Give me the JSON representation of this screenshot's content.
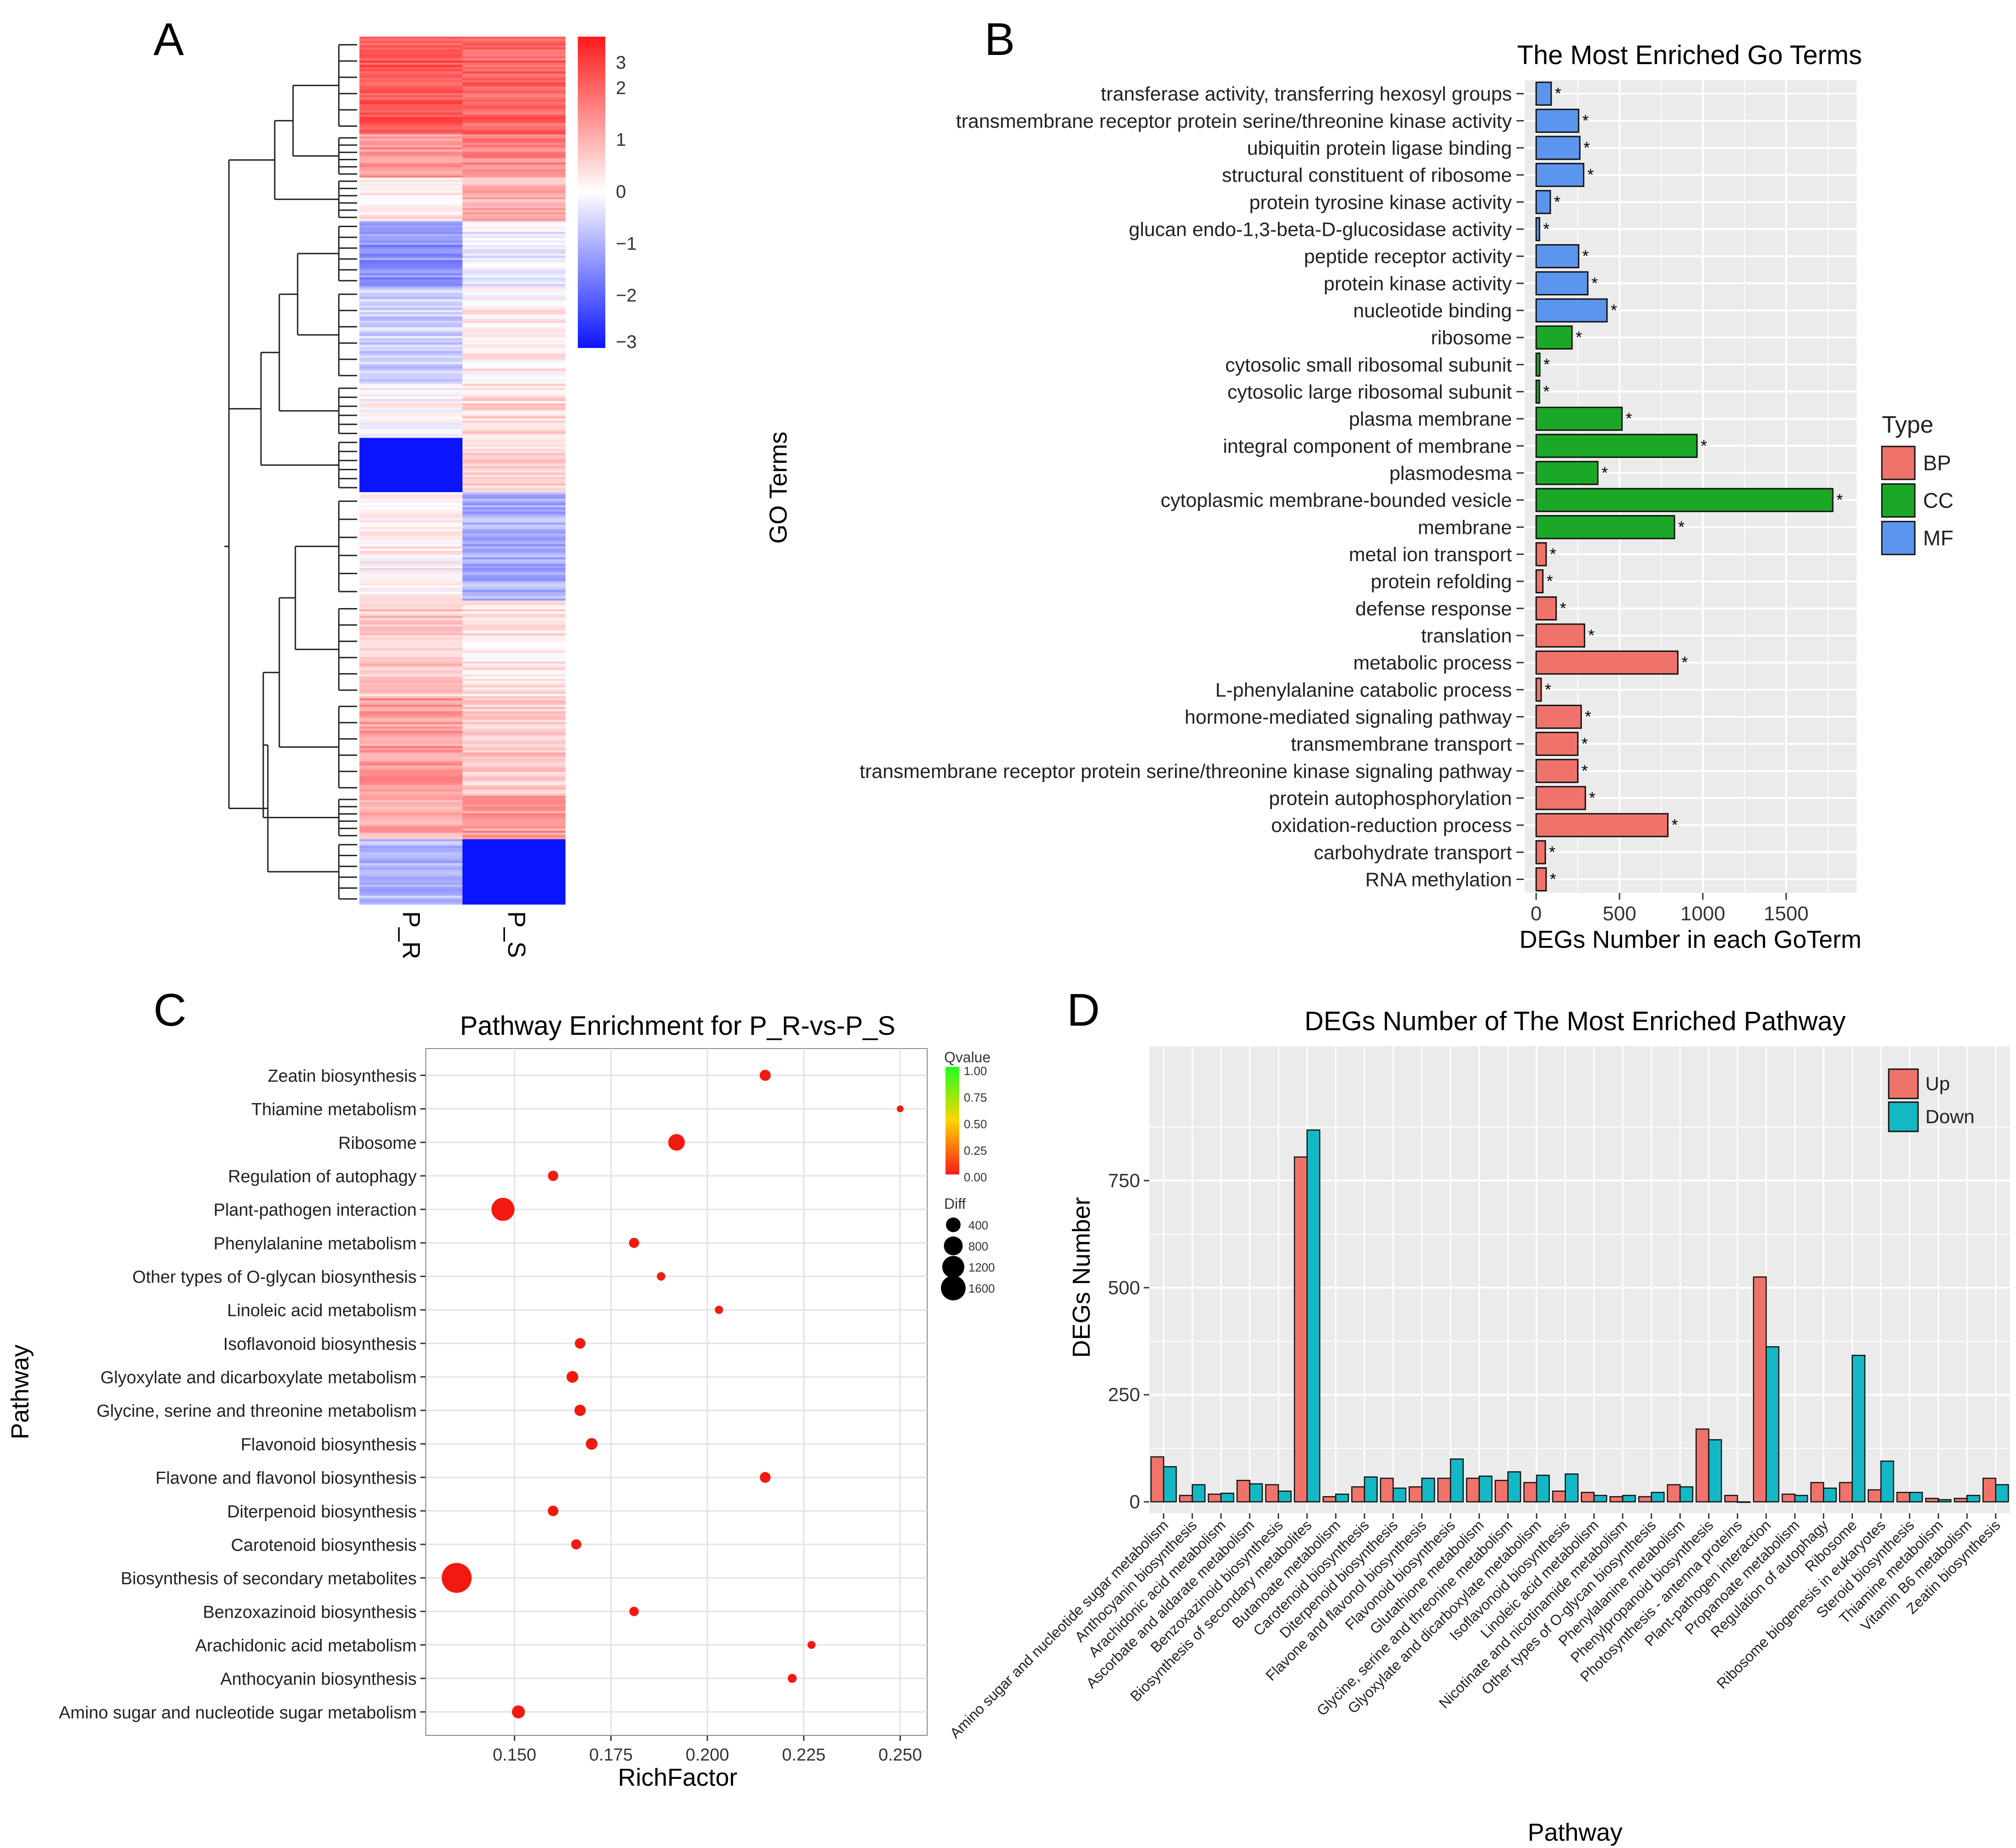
{
  "panels": {
    "A": {
      "letter": "A",
      "columns": [
        "P_R",
        "P_S"
      ],
      "colorbar": {
        "ticks": [
          3,
          2,
          1,
          0,
          -1,
          -2,
          -3
        ],
        "low_color": "#0a14ff",
        "mid_color": "#ffffff",
        "high_color": "#ff1a1a"
      }
    },
    "B": {
      "letter": "B"
    },
    "C": {
      "letter": "C"
    },
    "D": {
      "letter": "D"
    }
  },
  "chart_data": [
    {
      "panel": "A",
      "type": "heatmap",
      "columns": [
        "P_R",
        "P_S"
      ],
      "value_range": [
        -3,
        3
      ],
      "rows_top_to_bottom": [
        {
          "count": 45,
          "P_R": 2.2,
          "P_S": 2.0
        },
        {
          "count": 20,
          "P_R": 1.4,
          "P_S": 1.6
        },
        {
          "count": 20,
          "P_R": 0.3,
          "P_S": 1.0
        },
        {
          "count": 30,
          "P_R": -1.4,
          "P_S": -0.2
        },
        {
          "count": 45,
          "P_R": -0.6,
          "P_S": 0.2
        },
        {
          "count": 25,
          "P_R": 0.1,
          "P_S": 0.5
        },
        {
          "count": 25,
          "P_R": -3.0,
          "P_S": 0.6
        },
        {
          "count": 50,
          "P_R": 0.2,
          "P_S": -1.0
        },
        {
          "count": 45,
          "P_R": 0.7,
          "P_S": 0.3
        },
        {
          "count": 45,
          "P_R": 1.3,
          "P_S": 0.7
        },
        {
          "count": 20,
          "P_R": 1.1,
          "P_S": 1.3
        },
        {
          "count": 30,
          "P_R": -0.9,
          "P_S": -3.0
        }
      ]
    },
    {
      "panel": "B",
      "type": "bar",
      "orientation": "horizontal",
      "title": "The Most Enriched Go Terms",
      "xlabel": "DEGs Number in each GoTerm",
      "ylabel": "GO Terms",
      "xlim": [
        0,
        1800
      ],
      "xticks": [
        0,
        500,
        1000,
        1500
      ],
      "legend_title": "Type",
      "legend_placement": "right",
      "types": [
        {
          "name": "BP",
          "color": "#f0736b"
        },
        {
          "name": "CC",
          "color": "#1aa826"
        },
        {
          "name": "MF",
          "color": "#5b95ee"
        }
      ],
      "marker": "*",
      "terms": [
        {
          "name": "transferase activity, transferring hexosyl groups",
          "type": "MF",
          "value": 90
        },
        {
          "name": "transmembrane receptor protein serine/threonine kinase activity",
          "type": "MF",
          "value": 255
        },
        {
          "name": "ubiquitin protein ligase binding",
          "type": "MF",
          "value": 262
        },
        {
          "name": "structural constituent of ribosome",
          "type": "MF",
          "value": 285
        },
        {
          "name": "protein tyrosine kinase activity",
          "type": "MF",
          "value": 85
        },
        {
          "name": "glucan endo-1,3-beta-D-glucosidase activity",
          "type": "MF",
          "value": 20
        },
        {
          "name": "peptide receptor activity",
          "type": "MF",
          "value": 255
        },
        {
          "name": "protein kinase activity",
          "type": "MF",
          "value": 310
        },
        {
          "name": "nucleotide binding",
          "type": "MF",
          "value": 425
        },
        {
          "name": "ribosome",
          "type": "CC",
          "value": 215
        },
        {
          "name": "cytosolic small ribosomal subunit",
          "type": "CC",
          "value": 22
        },
        {
          "name": "cytosolic large ribosomal subunit",
          "type": "CC",
          "value": 20
        },
        {
          "name": "plasma membrane",
          "type": "CC",
          "value": 515
        },
        {
          "name": "integral component of membrane",
          "type": "CC",
          "value": 965
        },
        {
          "name": "plasmodesma",
          "type": "CC",
          "value": 370
        },
        {
          "name": "cytoplasmic membrane-bounded vesicle",
          "type": "CC",
          "value": 1780
        },
        {
          "name": "membrane",
          "type": "CC",
          "value": 830
        },
        {
          "name": "metal ion transport",
          "type": "BP",
          "value": 60
        },
        {
          "name": "protein refolding",
          "type": "BP",
          "value": 40
        },
        {
          "name": "defense response",
          "type": "BP",
          "value": 120
        },
        {
          "name": "translation",
          "type": "BP",
          "value": 290
        },
        {
          "name": "metabolic process",
          "type": "BP",
          "value": 850
        },
        {
          "name": "L-phenylalanine catabolic process",
          "type": "BP",
          "value": 30
        },
        {
          "name": "hormone-mediated signaling pathway",
          "type": "BP",
          "value": 270
        },
        {
          "name": "transmembrane transport",
          "type": "BP",
          "value": 250
        },
        {
          "name": "transmembrane receptor protein serine/threonine kinase signaling pathway",
          "type": "BP",
          "value": 250
        },
        {
          "name": "protein autophosphorylation",
          "type": "BP",
          "value": 295
        },
        {
          "name": "oxidation-reduction process",
          "type": "BP",
          "value": 790
        },
        {
          "name": "carbohydrate transport",
          "type": "BP",
          "value": 55
        },
        {
          "name": "RNA methylation",
          "type": "BP",
          "value": 60
        }
      ]
    },
    {
      "panel": "C",
      "type": "scatter",
      "title": "Pathway Enrichment for P_R-vs-P_S",
      "xlabel": "RichFactor",
      "ylabel": "Pathway",
      "xlim": [
        0.127,
        0.257
      ],
      "xticks": [
        "0.150",
        "0.175",
        "0.200",
        "0.225",
        "0.250"
      ],
      "qvalue_legend": {
        "title": "Qvalue",
        "ticks": [
          "1.00",
          "0.75",
          "0.50",
          "0.25",
          "0.00"
        ]
      },
      "diff_legend": {
        "title": "Diff",
        "ticks": [
          400,
          800,
          1200,
          1600
        ]
      },
      "points": [
        {
          "pathway": "Zeatin biosynthesis",
          "rich": 0.215,
          "diff": 110,
          "qvalue": 0.0
        },
        {
          "pathway": "Thiamine metabolism",
          "rich": 0.25,
          "diff": 12,
          "qvalue": 0.0
        },
        {
          "pathway": "Ribosome",
          "rich": 0.192,
          "diff": 370,
          "qvalue": 0.0
        },
        {
          "pathway": "Regulation of autophagy",
          "rich": 0.16,
          "diff": 85,
          "qvalue": 0.0
        },
        {
          "pathway": "Plant-pathogen interaction",
          "rich": 0.147,
          "diff": 880,
          "qvalue": 0.0
        },
        {
          "pathway": "Phenylalanine metabolism",
          "rich": 0.181,
          "diff": 80,
          "qvalue": 0.0
        },
        {
          "pathway": "Other types of O-glycan biosynthesis",
          "rich": 0.188,
          "diff": 40,
          "qvalue": 0.0
        },
        {
          "pathway": "Linoleic acid metabolism",
          "rich": 0.203,
          "diff": 35,
          "qvalue": 0.0
        },
        {
          "pathway": "Isoflavonoid biosynthesis",
          "rich": 0.167,
          "diff": 95,
          "qvalue": 0.0
        },
        {
          "pathway": "Glyoxylate and dicarboxylate metabolism",
          "rich": 0.165,
          "diff": 130,
          "qvalue": 0.0
        },
        {
          "pathway": "Glycine, serine and threonine metabolism",
          "rich": 0.167,
          "diff": 120,
          "qvalue": 0.0
        },
        {
          "pathway": "Flavonoid biosynthesis",
          "rich": 0.17,
          "diff": 130,
          "qvalue": 0.0
        },
        {
          "pathway": "Flavone and flavonol biosynthesis",
          "rich": 0.215,
          "diff": 100,
          "qvalue": 0.0
        },
        {
          "pathway": "Diterpenoid biosynthesis",
          "rich": 0.16,
          "diff": 95,
          "qvalue": 0.0
        },
        {
          "pathway": "Carotenoid biosynthesis",
          "rich": 0.166,
          "diff": 80,
          "qvalue": 0.0
        },
        {
          "pathway": "Biosynthesis of secondary metabolites",
          "rich": 0.135,
          "diff": 1660,
          "qvalue": 0.0
        },
        {
          "pathway": "Benzoxazinoid biosynthesis",
          "rich": 0.181,
          "diff": 60,
          "qvalue": 0.0
        },
        {
          "pathway": "Arachidonic acid metabolism",
          "rich": 0.227,
          "diff": 30,
          "qvalue": 0.0
        },
        {
          "pathway": "Anthocyanin biosynthesis",
          "rich": 0.222,
          "diff": 50,
          "qvalue": 0.0
        },
        {
          "pathway": "Amino sugar and nucleotide sugar metabolism",
          "rich": 0.151,
          "diff": 185,
          "qvalue": 0.0
        }
      ]
    },
    {
      "panel": "D",
      "type": "bar",
      "title": "DEGs Number of The Most Enriched Pathway",
      "xlabel": "Pathway",
      "ylabel": "DEGs Number",
      "ylim": [
        0,
        930
      ],
      "yticks": [
        0,
        250,
        500,
        750
      ],
      "legend_placement": "top-right",
      "categories": [
        "Amino sugar and nucleotide sugar metabolism",
        "Anthocyanin biosynthesis",
        "Arachidonic acid metabolism",
        "Ascorbate and aldarate metabolism",
        "Benzoxazinoid biosynthesis",
        "Biosynthesis of secondary metabolites",
        "Butanoate metabolism",
        "Carotenoid biosynthesis",
        "Diterpenoid biosynthesis",
        "Flavone and flavonol biosynthesis",
        "Flavonoid biosynthesis",
        "Glutathione metabolism",
        "Glycine, serine and threonine metabolism",
        "Glyoxylate and dicarboxylate metabolism",
        "Isoflavonoid biosynthesis",
        "Linoleic acid metabolism",
        "Nicotinate and nicotinamide metabolism",
        "Other types of O-glycan biosynthesis",
        "Phenylalanine metabolism",
        "Phenylpropanoid biosynthesis",
        "Photosynthesis - antenna proteins",
        "Plant-pathogen interaction",
        "Propanoate metabolism",
        "Regulation of autophagy",
        "Ribosome",
        "Ribosome biogenesis in eukaryotes",
        "Steroid biosynthesis",
        "Thiamine metabolism",
        "Vitamin B6 metabolism",
        "Zeatin biosynthesis"
      ],
      "series": [
        {
          "name": "Up",
          "color": "#f0736b",
          "values": [
            105,
            15,
            18,
            50,
            40,
            805,
            12,
            35,
            55,
            35,
            55,
            55,
            50,
            45,
            25,
            22,
            12,
            12,
            40,
            170,
            15,
            525,
            18,
            45,
            45,
            28,
            22,
            8,
            8,
            55
          ]
        },
        {
          "name": "Down",
          "color": "#14b8c4",
          "values": [
            82,
            40,
            20,
            42,
            25,
            868,
            18,
            58,
            32,
            55,
            100,
            60,
            70,
            62,
            65,
            15,
            15,
            22,
            35,
            145,
            0,
            362,
            15,
            32,
            342,
            95,
            22,
            5,
            15,
            40
          ]
        }
      ]
    }
  ]
}
